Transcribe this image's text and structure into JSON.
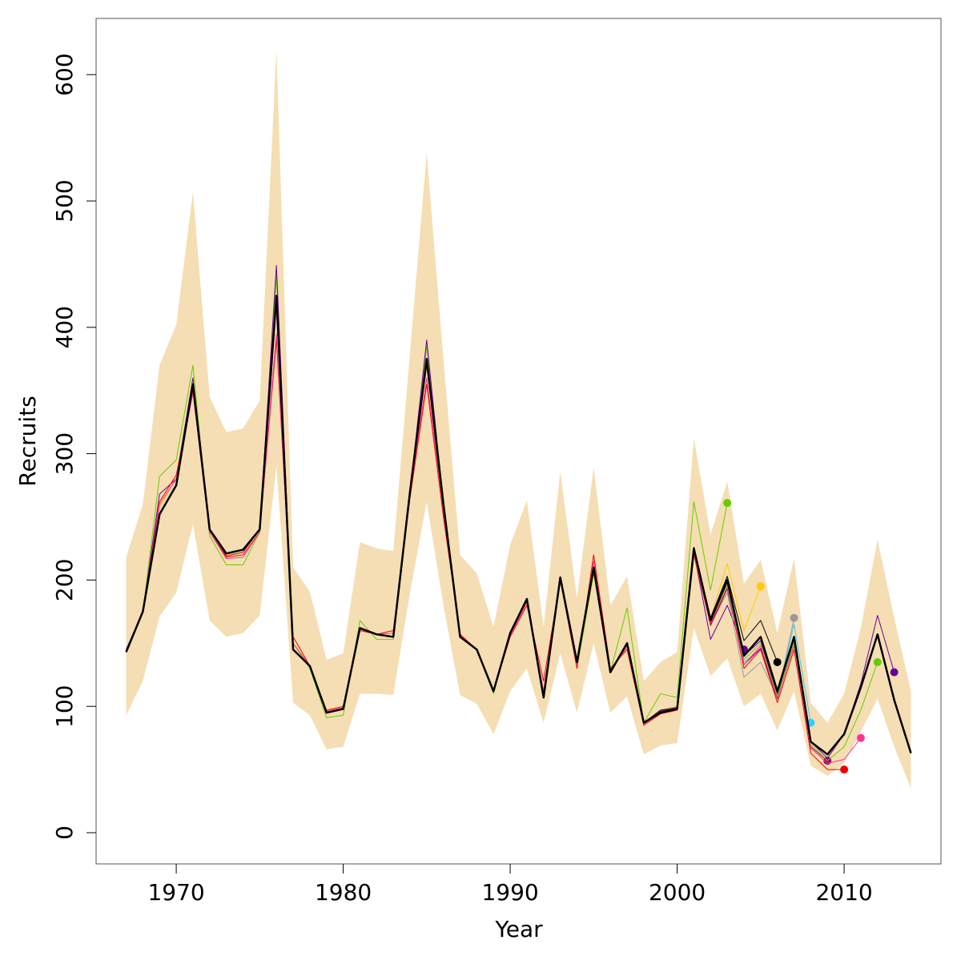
{
  "chart_data": {
    "type": "line",
    "xlabel": "Year",
    "ylabel": "Recruits",
    "x": [
      1967,
      1968,
      1969,
      1970,
      1971,
      1972,
      1973,
      1974,
      1975,
      1976,
      1977,
      1978,
      1979,
      1980,
      1981,
      1982,
      1983,
      1984,
      1985,
      1986,
      1987,
      1988,
      1989,
      1990,
      1991,
      1992,
      1993,
      1994,
      1995,
      1996,
      1997,
      1998,
      1999,
      2000,
      2001,
      2002,
      2003,
      2004,
      2005,
      2006,
      2007,
      2008,
      2009,
      2010,
      2011,
      2012,
      2013,
      2014
    ],
    "xlim": [
      1965.2,
      2015.8
    ],
    "xticks": [
      1970,
      1980,
      1990,
      2000,
      2010
    ],
    "ylim": [
      -24.7,
      644.5
    ],
    "yticks": [
      0,
      100,
      200,
      300,
      400,
      500,
      600
    ],
    "band": {
      "color": "#f5deb3",
      "upper": [
        218,
        260,
        370,
        402,
        507,
        345,
        317,
        320,
        342,
        620,
        210,
        191,
        137,
        142,
        230,
        225,
        223,
        380,
        538,
        375,
        220,
        205,
        163,
        228,
        263,
        163,
        286,
        186,
        289,
        180,
        203,
        120,
        135,
        143,
        312,
        236,
        278,
        197,
        216,
        158,
        217,
        103,
        87,
        110,
        162,
        232,
        170,
        112
      ],
      "lower": [
        93,
        120,
        171,
        190,
        244,
        168,
        155,
        158,
        172,
        290,
        103,
        93,
        66,
        68,
        110,
        110,
        109,
        190,
        262,
        180,
        109,
        102,
        78,
        112,
        130,
        87,
        142,
        95,
        150,
        95,
        108,
        62,
        69,
        71,
        162,
        124,
        138,
        100,
        110,
        81,
        112,
        53,
        45,
        55,
        80,
        106,
        68,
        35
      ]
    },
    "series": [
      {
        "color": "#66cc00",
        "values": [
          143,
          175,
          282,
          295,
          370,
          235,
          212,
          212,
          238,
          440,
          150,
          130,
          91,
          93,
          168,
          153,
          153,
          270,
          385,
          265,
          155,
          145,
          110,
          158,
          183,
          107,
          200,
          130,
          205,
          127,
          178,
          87,
          110,
          107,
          262,
          192,
          261,
          null,
          null,
          null,
          null,
          null,
          null,
          null,
          null,
          null,
          null,
          null
        ]
      },
      {
        "color": "#660099",
        "values": [
          145,
          175,
          268,
          280,
          360,
          240,
          221,
          224,
          240,
          449,
          145,
          132,
          95,
          98,
          162,
          157,
          155,
          270,
          390,
          260,
          155,
          145,
          112,
          158,
          185,
          107,
          202,
          135,
          210,
          127,
          150,
          87,
          96,
          100,
          222,
          153,
          180,
          145,
          null,
          null,
          null,
          null,
          null,
          null,
          null,
          null,
          null,
          null
        ]
      },
      {
        "color": "#ffcc00",
        "values": [
          143,
          175,
          258,
          280,
          355,
          240,
          220,
          222,
          240,
          425,
          145,
          132,
          95,
          98,
          162,
          157,
          155,
          270,
          375,
          260,
          155,
          145,
          112,
          158,
          185,
          107,
          202,
          135,
          210,
          127,
          150,
          87,
          97,
          100,
          225,
          170,
          213,
          160,
          195,
          null,
          null,
          null,
          null,
          null,
          null,
          null,
          null,
          null
        ]
      },
      {
        "color": "#000000",
        "values": [
          143,
          175,
          252,
          275,
          355,
          240,
          221,
          224,
          240,
          425,
          145,
          132,
          95,
          98,
          162,
          157,
          155,
          270,
          375,
          260,
          155,
          145,
          112,
          158,
          185,
          107,
          202,
          135,
          210,
          127,
          150,
          87,
          97,
          99,
          226,
          170,
          203,
          152,
          168,
          135,
          null,
          null,
          null,
          null,
          null,
          null,
          null,
          null
        ]
      },
      {
        "color": "#999999",
        "values": [
          143,
          175,
          252,
          275,
          352,
          240,
          221,
          224,
          240,
          425,
          145,
          132,
          95,
          98,
          162,
          157,
          155,
          270,
          375,
          260,
          155,
          145,
          112,
          158,
          185,
          107,
          202,
          135,
          210,
          127,
          150,
          87,
          95,
          98,
          220,
          165,
          190,
          123,
          135,
          107,
          170,
          null,
          null,
          null,
          null,
          null,
          null,
          null
        ]
      },
      {
        "color": "#33ccff",
        "values": [
          143,
          175,
          252,
          275,
          352,
          240,
          221,
          224,
          240,
          425,
          145,
          132,
          95,
          98,
          162,
          157,
          155,
          270,
          375,
          260,
          155,
          145,
          112,
          158,
          185,
          107,
          202,
          135,
          210,
          127,
          150,
          87,
          96,
          99,
          224,
          166,
          198,
          135,
          145,
          108,
          165,
          87,
          null,
          null,
          null,
          null,
          null,
          null
        ]
      },
      {
        "color": "#990066",
        "values": [
          143,
          175,
          252,
          275,
          350,
          240,
          219,
          222,
          240,
          420,
          145,
          132,
          95,
          98,
          162,
          157,
          155,
          268,
          370,
          258,
          155,
          145,
          112,
          158,
          185,
          107,
          202,
          135,
          210,
          127,
          150,
          87,
          95,
          98,
          222,
          164,
          193,
          133,
          146,
          106,
          150,
          68,
          57,
          null,
          null,
          null,
          null,
          null
        ]
      },
      {
        "color": "#ee0000",
        "values": [
          143,
          175,
          262,
          283,
          350,
          238,
          218,
          220,
          238,
          390,
          155,
          132,
          97,
          100,
          160,
          157,
          160,
          265,
          355,
          250,
          157,
          145,
          112,
          155,
          180,
          120,
          200,
          130,
          220,
          130,
          145,
          85,
          94,
          97,
          220,
          165,
          195,
          130,
          145,
          103,
          145,
          63,
          50,
          50,
          null,
          null,
          null,
          null
        ]
      },
      {
        "color": "#ff3399",
        "values": [
          143,
          175,
          260,
          280,
          348,
          238,
          217,
          218,
          238,
          395,
          150,
          132,
          96,
          99,
          161,
          157,
          158,
          268,
          360,
          255,
          156,
          145,
          112,
          156,
          182,
          112,
          200,
          132,
          215,
          128,
          147,
          86,
          95,
          98,
          222,
          166,
          195,
          133,
          148,
          107,
          148,
          67,
          55,
          58,
          75,
          null,
          null,
          null
        ]
      },
      {
        "color": "#66cc00",
        "values": [
          143,
          175,
          252,
          275,
          355,
          240,
          221,
          224,
          240,
          425,
          145,
          132,
          95,
          98,
          162,
          157,
          155,
          270,
          375,
          260,
          155,
          145,
          112,
          158,
          185,
          107,
          202,
          135,
          210,
          127,
          150,
          87,
          96,
          99,
          223,
          167,
          196,
          137,
          150,
          108,
          150,
          70,
          57,
          68,
          97,
          135,
          null,
          null
        ]
      },
      {
        "color": "#660099",
        "values": [
          143,
          175,
          252,
          275,
          355,
          240,
          221,
          224,
          240,
          425,
          145,
          132,
          95,
          98,
          162,
          157,
          155,
          270,
          375,
          260,
          155,
          145,
          112,
          158,
          185,
          107,
          202,
          135,
          210,
          127,
          150,
          87,
          96,
          99,
          224,
          168,
          198,
          140,
          152,
          110,
          153,
          72,
          59,
          78,
          118,
          172,
          127,
          null
        ]
      },
      {
        "color": "#000000",
        "main": true,
        "values": [
          143,
          175,
          252,
          275,
          355,
          240,
          221,
          224,
          240,
          425,
          145,
          132,
          95,
          98,
          162,
          157,
          155,
          270,
          375,
          260,
          155,
          145,
          112,
          158,
          185,
          107,
          202,
          135,
          210,
          127,
          150,
          87,
          95,
          98,
          225,
          168,
          200,
          140,
          155,
          112,
          155,
          72,
          62,
          78,
          115,
          157,
          105,
          63
        ]
      }
    ]
  }
}
